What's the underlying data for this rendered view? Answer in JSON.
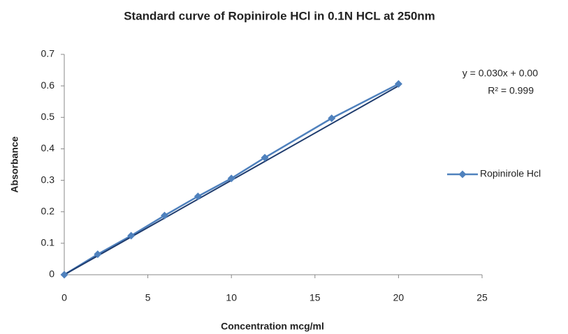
{
  "chart_data": {
    "type": "scatter_line",
    "title": "Standard curve of Ropinirole HCl in 0.1N HCL at 250nm",
    "xlabel": "Concentration mcg/ml",
    "ylabel": "Absorbance",
    "x": [
      0,
      2,
      4,
      6,
      8,
      10,
      12,
      16,
      20
    ],
    "series": [
      {
        "name": "Ropinirole Hcl",
        "color": "#4f81bd",
        "values": [
          0,
          0.065,
          0.124,
          0.188,
          0.249,
          0.306,
          0.372,
          0.497,
          0.606
        ]
      }
    ],
    "trendline": {
      "slope": 0.03,
      "intercept": 0,
      "color": "#1f3c6e",
      "equation": "y = 0.030x + 0.00",
      "r_squared": "R² = 0.999"
    },
    "xlim": [
      0,
      25
    ],
    "xticks": [
      0,
      5,
      10,
      15,
      20,
      25
    ],
    "ylim": [
      0,
      0.7
    ],
    "yticks": [
      0,
      0.1,
      0.2,
      0.3,
      0.4,
      0.5,
      0.6,
      0.7
    ],
    "grid": false,
    "legend": "right"
  }
}
